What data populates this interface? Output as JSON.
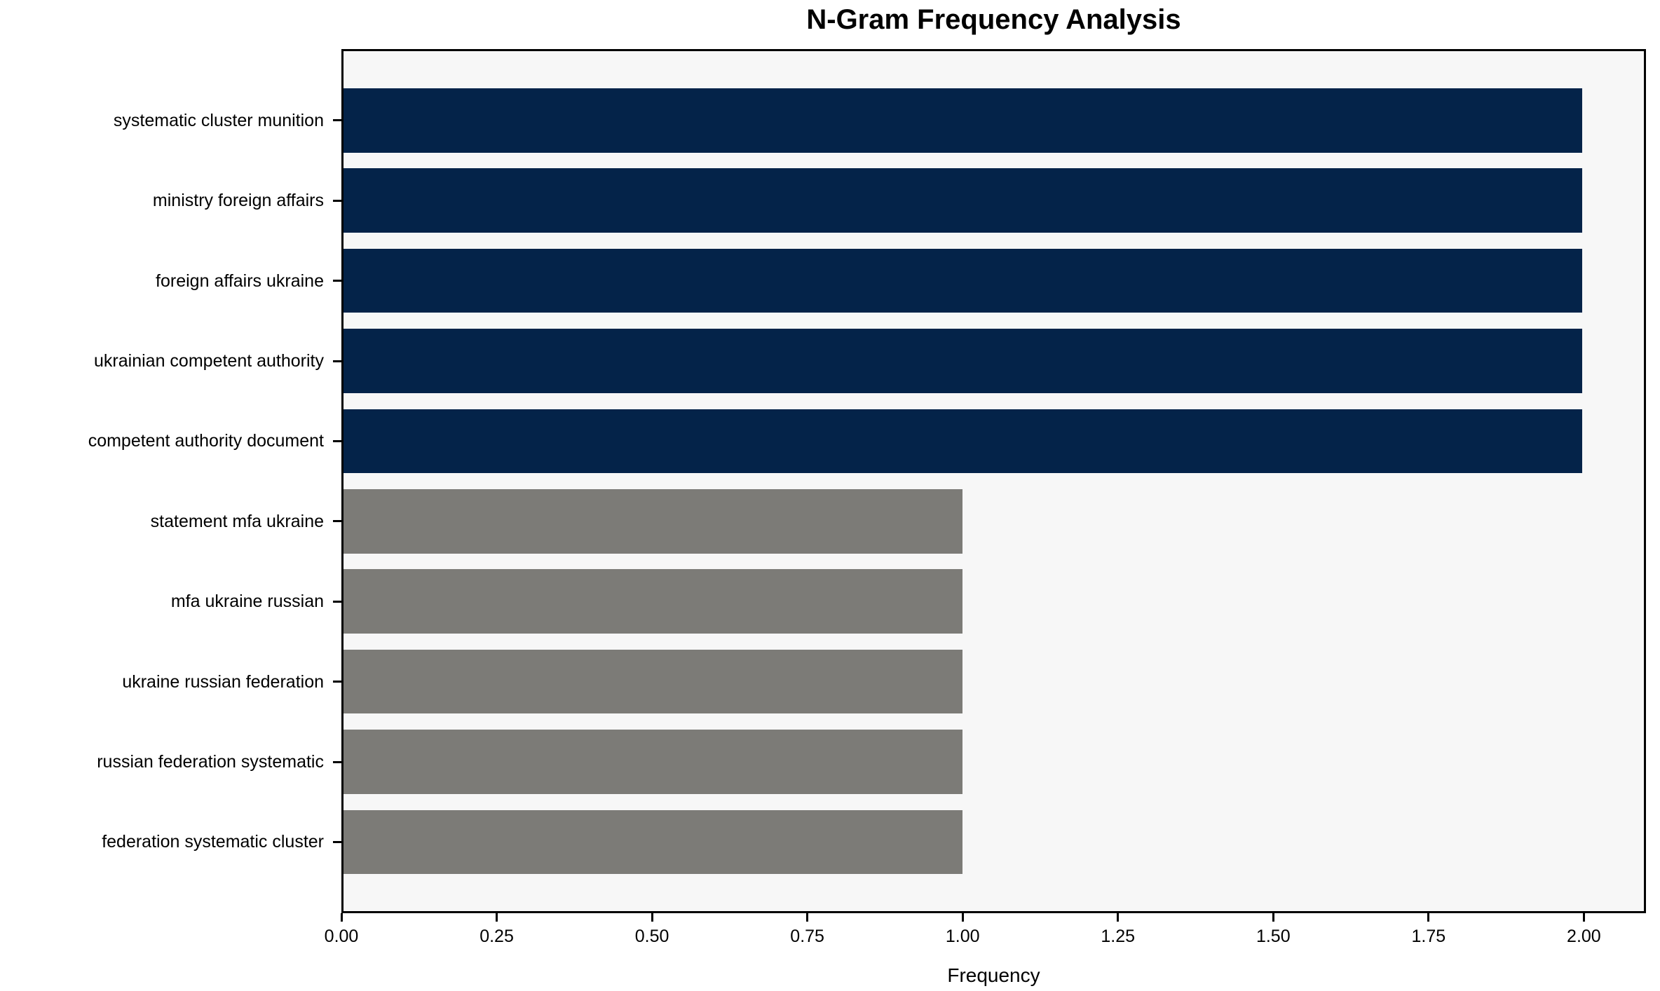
{
  "chart_data": {
    "type": "bar",
    "orientation": "horizontal",
    "title": "N-Gram Frequency Analysis",
    "xlabel": "Frequency",
    "ylabel": "",
    "categories": [
      "systematic cluster munition",
      "ministry foreign affairs",
      "foreign affairs ukraine",
      "ukrainian competent authority",
      "competent authority document",
      "statement mfa ukraine",
      "mfa ukraine russian",
      "ukraine russian federation",
      "russian federation systematic",
      "federation systematic cluster"
    ],
    "values": [
      2,
      2,
      2,
      2,
      2,
      1,
      1,
      1,
      1,
      1
    ],
    "bar_colors": [
      "#042349",
      "#042349",
      "#042349",
      "#042349",
      "#042349",
      "#7c7b77",
      "#7c7b77",
      "#7c7b77",
      "#7c7b77",
      "#7c7b77"
    ],
    "xlim": [
      0,
      2.1
    ],
    "xticks": {
      "values": [
        0,
        0.25,
        0.5,
        0.75,
        1.0,
        1.25,
        1.5,
        1.75,
        2.0
      ],
      "labels": [
        "0.00",
        "0.25",
        "0.50",
        "0.75",
        "1.00",
        "1.25",
        "1.50",
        "1.75",
        "2.00"
      ]
    },
    "grid": false,
    "legend": "none",
    "plot_background": "#f7f7f7",
    "spine_color": "#000000",
    "text_color": "#000000"
  }
}
